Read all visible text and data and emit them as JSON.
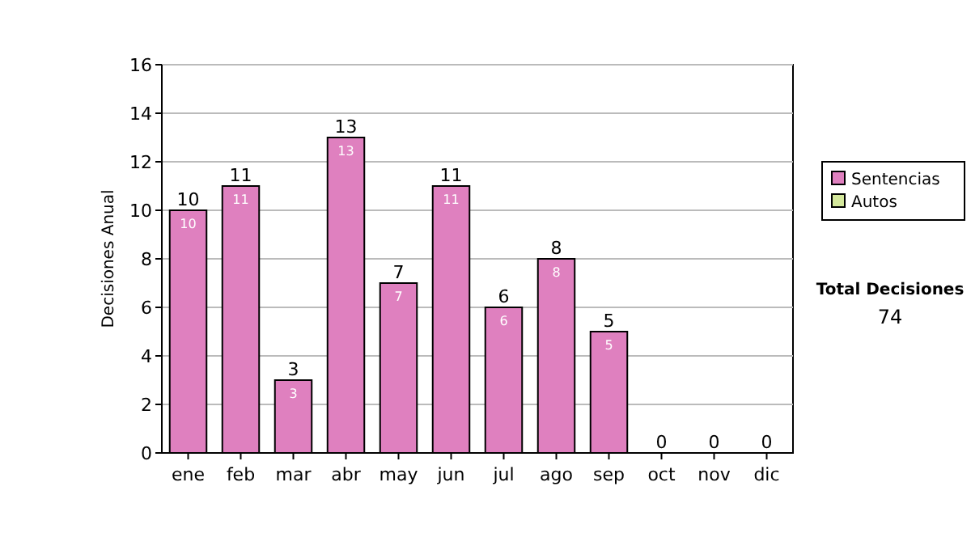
{
  "chart_data": {
    "type": "bar",
    "stacked": true,
    "ylabel": "Decisiones Anual",
    "categories": [
      "ene",
      "feb",
      "mar",
      "abr",
      "may",
      "jun",
      "jul",
      "ago",
      "sep",
      "oct",
      "nov",
      "dic"
    ],
    "series": [
      {
        "name": "Sentencias",
        "color": "#df80bf",
        "values": [
          10,
          11,
          3,
          13,
          7,
          11,
          6,
          8,
          5,
          0,
          0,
          0
        ],
        "value_labels": [
          "10",
          "11",
          "3",
          "13",
          "7",
          "11",
          "6",
          "8",
          "5",
          null,
          null,
          null
        ]
      },
      {
        "name": "Autos",
        "color": "#d4e89c",
        "values": [
          0,
          0,
          0,
          0,
          0,
          0,
          0,
          0,
          0,
          0,
          0,
          0
        ]
      }
    ],
    "totals": [
      "10",
      "11",
      "3",
      "13",
      "7",
      "11",
      "6",
      "8",
      "5",
      "0",
      "0",
      "0"
    ],
    "ylim": [
      0,
      16
    ],
    "yticks": [
      0,
      2,
      4,
      6,
      8,
      10,
      12,
      14,
      16
    ],
    "grid": "y",
    "legend": "right",
    "annotations": [
      "Total Decisiones",
      "74"
    ]
  }
}
